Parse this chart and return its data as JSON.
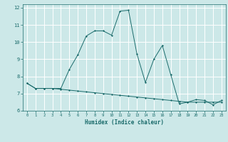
{
  "title": "",
  "xlabel": "Humidex (Indice chaleur)",
  "bg_color": "#cce8e8",
  "grid_color": "#ffffff",
  "line_color": "#1a6b6b",
  "xlim": [
    -0.5,
    23.5
  ],
  "ylim": [
    6,
    12.2
  ],
  "xticks": [
    0,
    1,
    2,
    3,
    4,
    5,
    6,
    7,
    8,
    9,
    10,
    11,
    12,
    13,
    14,
    15,
    16,
    17,
    18,
    19,
    20,
    21,
    22,
    23
  ],
  "yticks": [
    6,
    7,
    8,
    9,
    10,
    11,
    12
  ],
  "series1_x": [
    0,
    1,
    2,
    3,
    4,
    5,
    6,
    7,
    8,
    9,
    10,
    11,
    12,
    13,
    14,
    15,
    16,
    17,
    18,
    19,
    20,
    21,
    22,
    23
  ],
  "series1_y": [
    7.6,
    7.3,
    7.3,
    7.3,
    7.25,
    7.2,
    7.15,
    7.1,
    7.05,
    7.0,
    6.95,
    6.9,
    6.85,
    6.8,
    6.75,
    6.7,
    6.65,
    6.6,
    6.55,
    6.5,
    6.5,
    6.5,
    6.5,
    6.5
  ],
  "series2_x": [
    0,
    1,
    2,
    3,
    4,
    5,
    6,
    7,
    8,
    9,
    10,
    11,
    12,
    13,
    14,
    15,
    16,
    17,
    18,
    19,
    20,
    21,
    22,
    23
  ],
  "series2_y": [
    7.6,
    7.3,
    7.3,
    7.3,
    7.3,
    8.4,
    9.25,
    10.35,
    10.65,
    10.65,
    10.4,
    11.8,
    11.85,
    9.3,
    7.65,
    9.0,
    9.8,
    8.1,
    6.4,
    6.5,
    6.65,
    6.6,
    6.35,
    6.6
  ]
}
